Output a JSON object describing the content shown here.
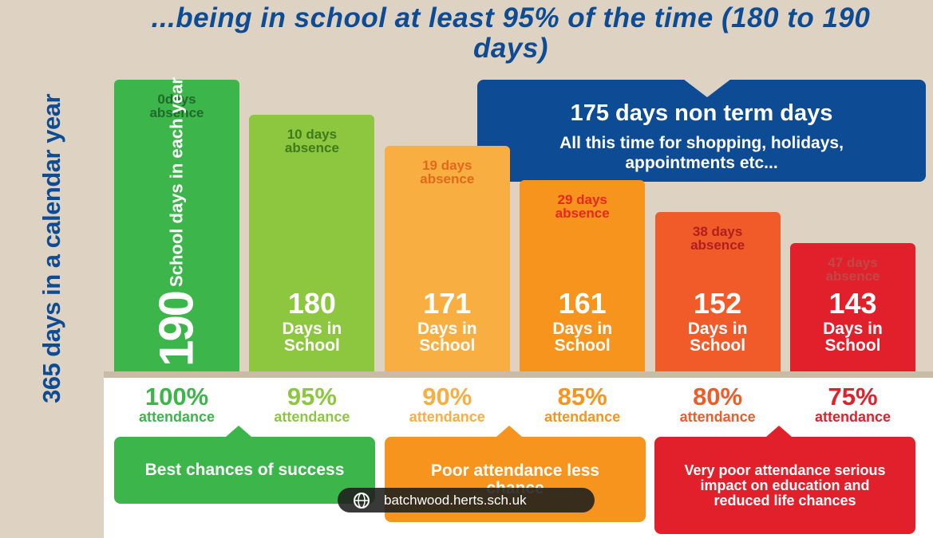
{
  "title": "...being in school at least 95% of the time (180 to 190 days)",
  "side_label": "365 days in a calendar year",
  "non_term": {
    "title": "175 days non term days",
    "text": "All this time for shopping, holidays, appointments etc..."
  },
  "columns": [
    {
      "absence": "0days absence",
      "days": 190,
      "days_label": "School days in each year",
      "attendance": "100%",
      "attendance_label": "attendance"
    },
    {
      "absence": "10 days absence",
      "days": 180,
      "days_label": "Days in School",
      "attendance": "95%",
      "attendance_label": "attendance"
    },
    {
      "absence": "19 days absence",
      "days": 171,
      "days_label": "Days in School",
      "attendance": "90%",
      "attendance_label": "attendance"
    },
    {
      "absence": "29 days absence",
      "days": 161,
      "days_label": "Days in School",
      "attendance": "85%",
      "attendance_label": "attendance"
    },
    {
      "absence": "38 days absence",
      "days": 152,
      "days_label": "Days in School",
      "attendance": "80%",
      "attendance_label": "attendance"
    },
    {
      "absence": "47 days absence",
      "days": 143,
      "days_label": "Days in School",
      "attendance": "75%",
      "attendance_label": "attendance"
    }
  ],
  "outcomes": [
    "Best chances of success",
    "Poor attendance less chance",
    "Very poor attendance serious impact on education and reduced life chances"
  ],
  "watermark": "batchwood.herts.sch.uk"
}
